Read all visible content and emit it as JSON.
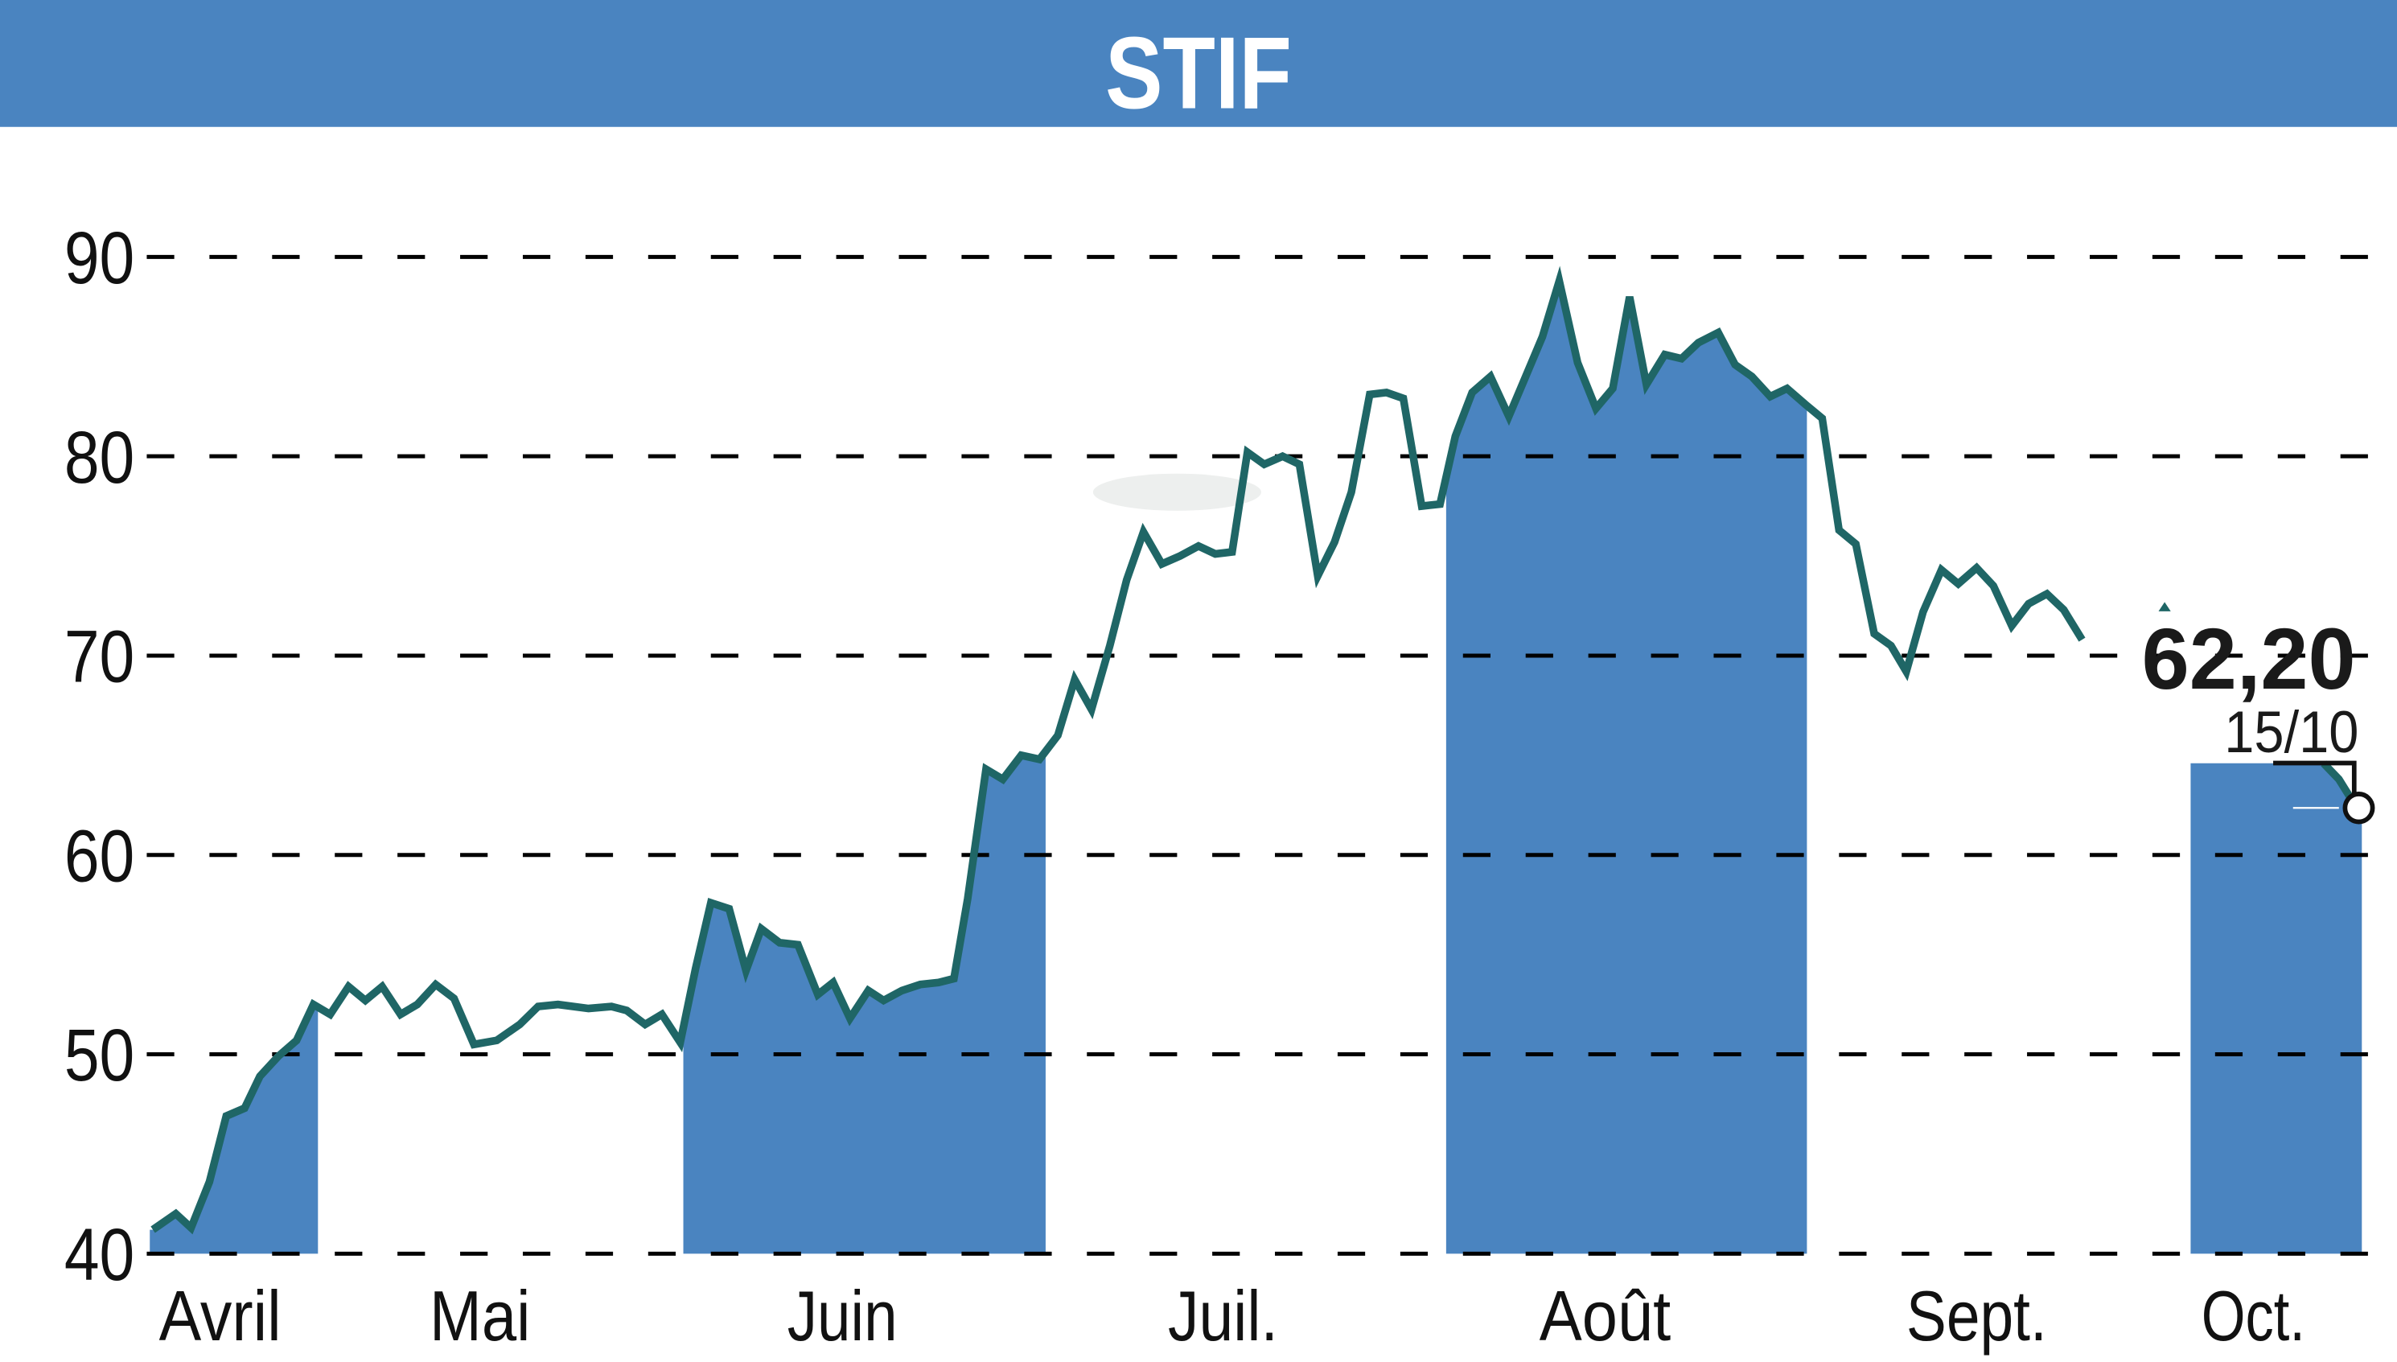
{
  "header": {
    "title": "STIF",
    "background_color": "#4A84C0",
    "text_color": "#FFFFFF"
  },
  "last_value": {
    "price": "62,20",
    "date": "15/10"
  },
  "colors": {
    "line": "#1F6666",
    "band": "#4A84C0",
    "grid": "#000000"
  },
  "chart_data": {
    "type": "line",
    "title": "STIF",
    "xlabel": "",
    "ylabel": "",
    "ylim": [
      40,
      90
    ],
    "yticks": [
      40,
      50,
      60,
      70,
      80,
      90
    ],
    "ytick_labels": [
      "40",
      "50",
      "60",
      "70",
      "80",
      "90"
    ],
    "x_month_labels": [
      "Avril",
      "Mai",
      "Juin",
      "Juil.",
      "Août",
      "Sept.",
      "Oct."
    ],
    "grid": {
      "horizontal": true,
      "style": "dashed"
    },
    "alternating_month_bands": [
      "Avril",
      "Juin",
      "Août",
      "Oct."
    ],
    "annotation": {
      "value": "62,20",
      "date": "15/10"
    },
    "series": [
      {
        "name": "STIF",
        "points": [
          {
            "x": 100,
            "y": 41.2
          },
          {
            "x": 115,
            "y": 42.0
          },
          {
            "x": 125,
            "y": 41.3
          },
          {
            "x": 137,
            "y": 43.6
          },
          {
            "x": 148,
            "y": 46.9
          },
          {
            "x": 160,
            "y": 47.3
          },
          {
            "x": 170,
            "y": 48.9
          },
          {
            "x": 182,
            "y": 49.9
          },
          {
            "x": 194,
            "y": 50.7
          },
          {
            "x": 205,
            "y": 52.5
          },
          {
            "x": 216,
            "y": 52.0
          },
          {
            "x": 228,
            "y": 53.4
          },
          {
            "x": 239,
            "y": 52.7
          },
          {
            "x": 250,
            "y": 53.4
          },
          {
            "x": 262,
            "y": 52.0
          },
          {
            "x": 273,
            "y": 52.5
          },
          {
            "x": 285,
            "y": 53.5
          },
          {
            "x": 297,
            "y": 52.8
          },
          {
            "x": 310,
            "y": 50.5
          },
          {
            "x": 325,
            "y": 50.7
          },
          {
            "x": 340,
            "y": 51.5
          },
          {
            "x": 352,
            "y": 52.4
          },
          {
            "x": 365,
            "y": 52.5
          },
          {
            "x": 385,
            "y": 52.3
          },
          {
            "x": 400,
            "y": 52.4
          },
          {
            "x": 410,
            "y": 52.2
          },
          {
            "x": 422,
            "y": 51.5
          },
          {
            "x": 433,
            "y": 52.0
          },
          {
            "x": 445,
            "y": 50.6
          },
          {
            "x": 455,
            "y": 54.3
          },
          {
            "x": 465,
            "y": 57.6
          },
          {
            "x": 477,
            "y": 57.3
          },
          {
            "x": 488,
            "y": 54.2
          },
          {
            "x": 498,
            "y": 56.3
          },
          {
            "x": 510,
            "y": 55.6
          },
          {
            "x": 522,
            "y": 55.5
          },
          {
            "x": 535,
            "y": 53.0
          },
          {
            "x": 545,
            "y": 53.6
          },
          {
            "x": 556,
            "y": 51.8
          },
          {
            "x": 568,
            "y": 53.2
          },
          {
            "x": 578,
            "y": 52.7
          },
          {
            "x": 590,
            "y": 53.2
          },
          {
            "x": 602,
            "y": 53.5
          },
          {
            "x": 614,
            "y": 53.6
          },
          {
            "x": 624,
            "y": 53.8
          },
          {
            "x": 633,
            "y": 57.8
          },
          {
            "x": 645,
            "y": 64.3
          },
          {
            "x": 656,
            "y": 63.8
          },
          {
            "x": 668,
            "y": 65.0
          },
          {
            "x": 680,
            "y": 64.8
          },
          {
            "x": 692,
            "y": 66.0
          },
          {
            "x": 703,
            "y": 68.8
          },
          {
            "x": 714,
            "y": 67.3
          },
          {
            "x": 726,
            "y": 70.5
          },
          {
            "x": 737,
            "y": 73.8
          },
          {
            "x": 748,
            "y": 76.2
          },
          {
            "x": 760,
            "y": 74.6
          },
          {
            "x": 772,
            "y": 75.0
          },
          {
            "x": 784,
            "y": 75.5
          },
          {
            "x": 795,
            "y": 75.1
          },
          {
            "x": 806,
            "y": 75.2
          },
          {
            "x": 816,
            "y": 80.2
          },
          {
            "x": 827,
            "y": 79.6
          },
          {
            "x": 839,
            "y": 80.0
          },
          {
            "x": 850,
            "y": 79.6
          },
          {
            "x": 862,
            "y": 74.0
          },
          {
            "x": 873,
            "y": 75.7
          },
          {
            "x": 884,
            "y": 78.2
          },
          {
            "x": 896,
            "y": 83.1
          },
          {
            "x": 907,
            "y": 83.2
          },
          {
            "x": 918,
            "y": 82.9
          },
          {
            "x": 930,
            "y": 77.5
          },
          {
            "x": 942,
            "y": 77.6
          },
          {
            "x": 952,
            "y": 81.0
          },
          {
            "x": 963,
            "y": 83.2
          },
          {
            "x": 975,
            "y": 84.0
          },
          {
            "x": 987,
            "y": 82.0
          },
          {
            "x": 998,
            "y": 84.0
          },
          {
            "x": 1009,
            "y": 86.0
          },
          {
            "x": 1020,
            "y": 88.8
          },
          {
            "x": 1032,
            "y": 84.7
          },
          {
            "x": 1044,
            "y": 82.4
          },
          {
            "x": 1055,
            "y": 83.4
          },
          {
            "x": 1066,
            "y": 88.0
          },
          {
            "x": 1077,
            "y": 83.6
          },
          {
            "x": 1089,
            "y": 85.1
          },
          {
            "x": 1100,
            "y": 84.9
          },
          {
            "x": 1111,
            "y": 85.7
          },
          {
            "x": 1124,
            "y": 86.2
          },
          {
            "x": 1135,
            "y": 84.6
          },
          {
            "x": 1146,
            "y": 84.0
          },
          {
            "x": 1158,
            "y": 83.0
          },
          {
            "x": 1169,
            "y": 83.4
          },
          {
            "x": 1181,
            "y": 82.6
          },
          {
            "x": 1192,
            "y": 81.9
          },
          {
            "x": 1203,
            "y": 76.3
          },
          {
            "x": 1214,
            "y": 75.6
          },
          {
            "x": 1226,
            "y": 71.1
          },
          {
            "x": 1237,
            "y": 70.5
          },
          {
            "x": 1247,
            "y": 69.2
          },
          {
            "x": 1258,
            "y": 72.2
          },
          {
            "x": 1270,
            "y": 74.3
          },
          {
            "x": 1281,
            "y": 73.6
          },
          {
            "x": 1293,
            "y": 74.4
          },
          {
            "x": 1304,
            "y": 73.5
          },
          {
            "x": 1316,
            "y": 71.5
          },
          {
            "x": 1327,
            "y": 72.6
          },
          {
            "x": 1339,
            "y": 73.1
          },
          {
            "x": 1350,
            "y": 72.3
          },
          {
            "x": 1362,
            "y": 70.8
          }
        ],
        "segment2": [
          {
            "x": 1488,
            "y": 64.6
          },
          {
            "x": 1520,
            "y": 64.6
          },
          {
            "x": 1530,
            "y": 63.8
          },
          {
            "x": 1543,
            "y": 62.2
          }
        ]
      }
    ]
  }
}
